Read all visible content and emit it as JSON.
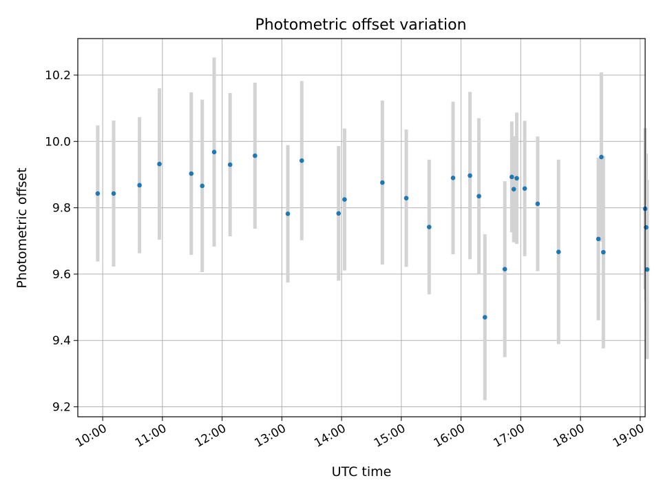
{
  "chart_data": {
    "type": "scatter",
    "title": "Photometric offset variation",
    "xlabel": "UTC time",
    "ylabel": "Photometric offset",
    "xlim": [
      "09:35",
      "19:05"
    ],
    "ylim": [
      9.17,
      10.31
    ],
    "x_ticks": [
      "10:00",
      "11:00",
      "12:00",
      "13:00",
      "14:00",
      "15:00",
      "16:00",
      "17:00",
      "18:00",
      "19:00"
    ],
    "y_ticks": [
      9.2,
      9.4,
      9.6,
      9.8,
      10.0,
      10.2
    ],
    "grid": true,
    "point_color": "#1f77b4",
    "errorbar_color": "#d3d3d3",
    "series": [
      {
        "x": [
          "09:55",
          "10:11",
          "10:37",
          "10:57",
          "11:29",
          "11:40",
          "11:52",
          "12:08",
          "12:33",
          "13:06",
          "13:20",
          "13:57",
          "14:03",
          "14:41",
          "15:05",
          "15:28",
          "15:52",
          "16:09",
          "16:18",
          "16:24",
          "16:44",
          "16:51",
          "16:53",
          "16:56",
          "17:04",
          "17:17",
          "17:38",
          "18:18",
          "18:21",
          "18:23",
          "19:05",
          "19:06",
          "19:07"
        ],
        "y": [
          9.843,
          9.843,
          9.868,
          9.932,
          9.903,
          9.866,
          9.968,
          9.93,
          9.957,
          9.782,
          9.942,
          9.783,
          9.825,
          9.876,
          9.829,
          9.742,
          9.89,
          9.897,
          9.835,
          9.47,
          9.615,
          9.893,
          9.856,
          9.889,
          9.858,
          9.812,
          9.667,
          9.706,
          9.953,
          9.666,
          9.797,
          9.741,
          9.614
        ],
        "err": [
          0.205,
          0.22,
          0.205,
          0.228,
          0.245,
          0.26,
          0.285,
          0.216,
          0.22,
          0.207,
          0.24,
          0.203,
          0.214,
          0.247,
          0.207,
          0.203,
          0.23,
          0.252,
          0.235,
          0.25,
          0.265,
          0.167,
          0.16,
          0.198,
          0.204,
          0.203,
          0.278,
          0.245,
          0.255,
          0.29,
          0.243,
          0.222,
          0.27
        ]
      }
    ]
  }
}
